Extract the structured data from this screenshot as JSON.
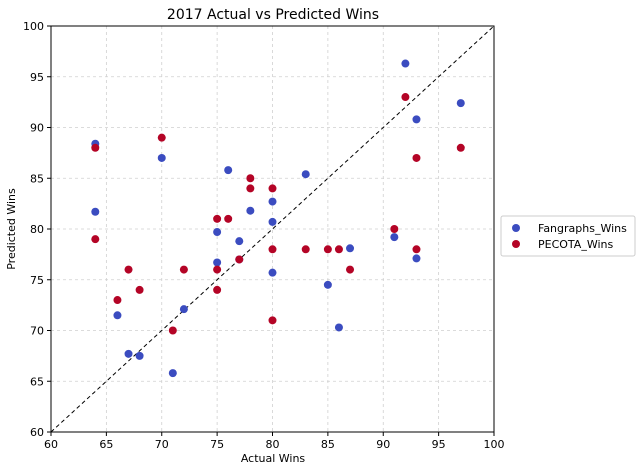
{
  "chart_data": {
    "type": "scatter",
    "title": "2017 Actual vs Predicted Wins",
    "xlabel": "Actual Wins",
    "ylabel": "Predicted Wins",
    "xlim": [
      60,
      100
    ],
    "ylim": [
      60,
      100
    ],
    "xticks": [
      60,
      65,
      70,
      75,
      80,
      85,
      90,
      95,
      100
    ],
    "yticks": [
      60,
      65,
      70,
      75,
      80,
      85,
      90,
      95,
      100
    ],
    "grid": true,
    "reference_line": "y = x (dashed)",
    "legend_position": "outside right",
    "series": [
      {
        "name": "Fangraphs_Wins",
        "color": "#3b4cc0",
        "points": [
          [
            64,
            88.4
          ],
          [
            64,
            81.7
          ],
          [
            66,
            71.5
          ],
          [
            67,
            67.7
          ],
          [
            68,
            67.5
          ],
          [
            70,
            87.0
          ],
          [
            71,
            65.8
          ],
          [
            72,
            72.1
          ],
          [
            75,
            79.7
          ],
          [
            75,
            76.7
          ],
          [
            76,
            85.8
          ],
          [
            77,
            78.8
          ],
          [
            77,
            77.0
          ],
          [
            78,
            81.8
          ],
          [
            80,
            82.7
          ],
          [
            80,
            80.7
          ],
          [
            80,
            75.7
          ],
          [
            83,
            85.4
          ],
          [
            85,
            74.5
          ],
          [
            86,
            70.3
          ],
          [
            87,
            78.1
          ],
          [
            91,
            79.2
          ],
          [
            92,
            96.3
          ],
          [
            93,
            90.8
          ],
          [
            93,
            77.1
          ],
          [
            97,
            92.4
          ]
        ]
      },
      {
        "name": "PECOTA_Wins",
        "color": "#b40426",
        "points": [
          [
            64,
            88.0
          ],
          [
            64,
            79.0
          ],
          [
            66,
            73.0
          ],
          [
            67,
            76.0
          ],
          [
            68,
            74.0
          ],
          [
            70,
            89.0
          ],
          [
            71,
            70.0
          ],
          [
            72,
            76.0
          ],
          [
            75,
            81.0
          ],
          [
            75,
            76.0
          ],
          [
            75,
            74.0
          ],
          [
            76,
            81.0
          ],
          [
            77,
            77.0
          ],
          [
            78,
            85.0
          ],
          [
            78,
            84.0
          ],
          [
            80,
            84.0
          ],
          [
            80,
            78.0
          ],
          [
            80,
            71.0
          ],
          [
            83,
            78.0
          ],
          [
            85,
            78.0
          ],
          [
            86,
            78.0
          ],
          [
            87,
            76.0
          ],
          [
            91,
            80.0
          ],
          [
            92,
            93.0
          ],
          [
            93,
            87.0
          ],
          [
            93,
            78.0
          ],
          [
            97,
            88.0
          ]
        ]
      }
    ]
  }
}
